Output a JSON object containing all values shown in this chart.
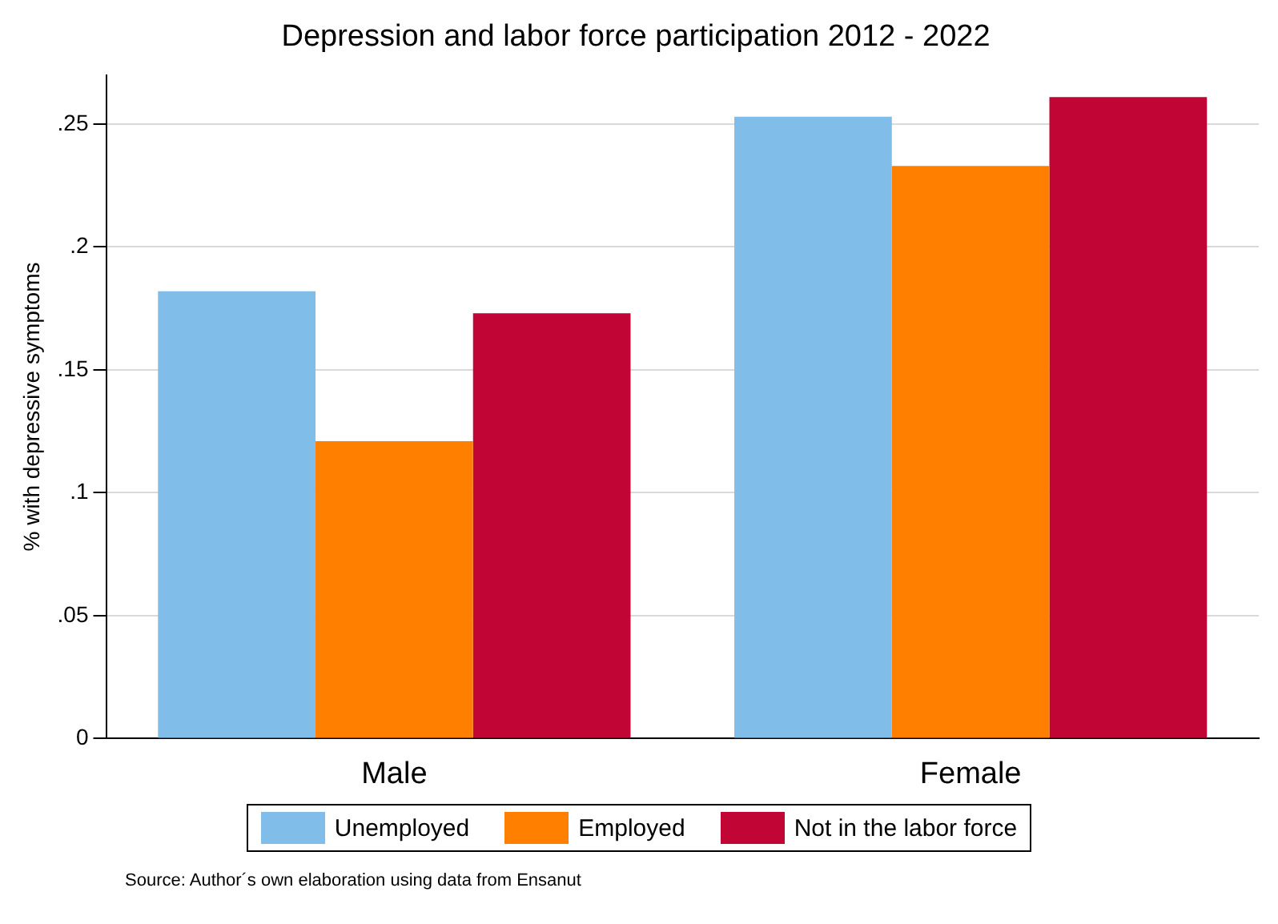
{
  "chart_data": {
    "type": "bar",
    "title": "Depression and labor force participation 2012 - 2022",
    "ylabel": "% with depressive symptoms",
    "categories": [
      "Male",
      "Female"
    ],
    "series": [
      {
        "name": "Unemployed",
        "color": "#80bde8",
        "values": [
          0.182,
          0.253
        ]
      },
      {
        "name": "Employed",
        "color": "#ff7f00",
        "values": [
          0.121,
          0.233
        ]
      },
      {
        "name": "Not in the labor force",
        "color": "#c10534",
        "values": [
          0.173,
          0.261
        ]
      }
    ],
    "ylim": [
      0,
      0.27
    ],
    "yticks": [
      {
        "value": 0,
        "label": "0"
      },
      {
        "value": 0.05,
        "label": ".05"
      },
      {
        "value": 0.1,
        "label": ".1"
      },
      {
        "value": 0.15,
        "label": ".15"
      },
      {
        "value": 0.2,
        "label": ".2"
      },
      {
        "value": 0.25,
        "label": ".25"
      }
    ],
    "grid": "y",
    "legend": "bottom",
    "annotations": [
      "Source: Author´s own elaboration using data from Ensanut"
    ]
  }
}
